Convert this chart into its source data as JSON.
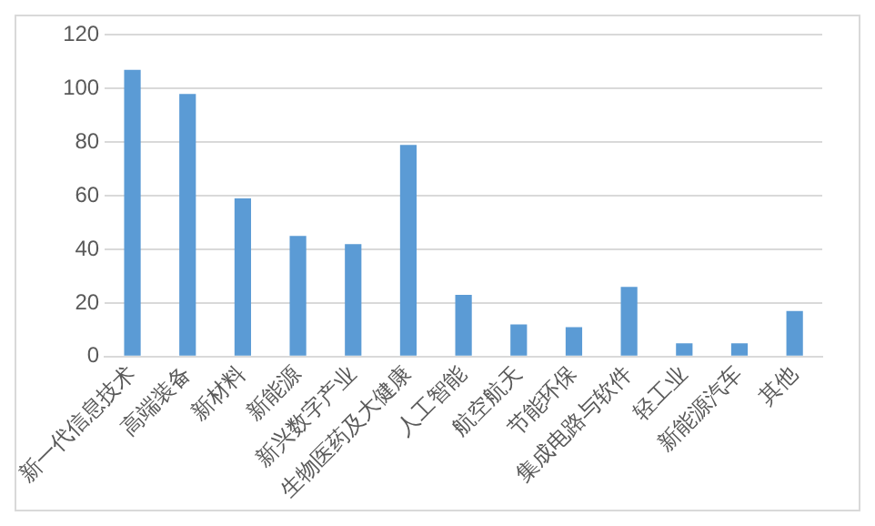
{
  "chart_data": {
    "type": "bar",
    "categories": [
      "新一代信息技术",
      "高端装备",
      "新材料",
      "新能源",
      "新兴数字产业",
      "生物医药及大健康",
      "人工智能",
      "航空航天",
      "节能环保",
      "集成电路与软件",
      "轻工业",
      "新能源汽车",
      "其他"
    ],
    "values": [
      107,
      98,
      59,
      45,
      42,
      79,
      23,
      12,
      11,
      26,
      5,
      5,
      17
    ],
    "color": "#5b9bd5",
    "ylim": [
      0,
      120
    ],
    "yticks": [
      0,
      20,
      40,
      60,
      80,
      100,
      120
    ],
    "grid": "y",
    "legend": false
  }
}
